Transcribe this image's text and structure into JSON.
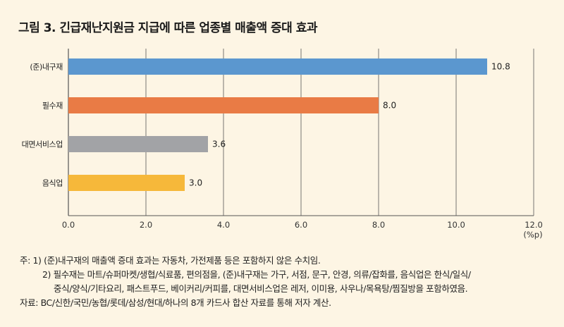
{
  "title": "그림 3.  긴급재난지원금 지급에 따른 업종별 매출액 증대 효과",
  "chart_data": {
    "type": "bar",
    "orientation": "horizontal",
    "categories": [
      "(준)내구재",
      "필수재",
      "대면서비스업",
      "음식업"
    ],
    "values": [
      10.8,
      8.0,
      3.6,
      3.0
    ],
    "value_labels": [
      "10.8",
      "8.0",
      "3.6",
      "3.0"
    ],
    "colors": [
      "#5b97cf",
      "#e97b45",
      "#a2a3a6",
      "#f6b83a"
    ],
    "xlim": [
      0,
      12
    ],
    "xticks": [
      "0.0",
      "2.0",
      "4.0",
      "6.0",
      "8.0",
      "10.0",
      "12.0"
    ],
    "xtick_values": [
      0,
      2,
      4,
      6,
      8,
      10,
      12
    ],
    "xunit": "(%p)",
    "grid": "vertical"
  },
  "notes": {
    "note1": "주:  1) (준)내구재의 매출액 증대 효과는 자동차, 가전제품 등은 포함하지 않은 수치임.",
    "note2a": "2) 필수재는 마트/슈퍼마켓/생협/식료품, 편의점을, (준)내구재는 가구, 서점, 문구, 안경, 의류/잡화를, 음식업은 한식/일식/",
    "note2b": "중식/양식/기타요리, 패스트푸드, 베이커리/커피를, 대면서비스업은 레저, 이미용, 사우나/목욕탕/찜질방을 포함하였음.",
    "source": "자료: BC/신한/국민/농협/롯데/삼성/현대/하나의 8개 카드사 합산 자료를 통해 저자 계산."
  }
}
